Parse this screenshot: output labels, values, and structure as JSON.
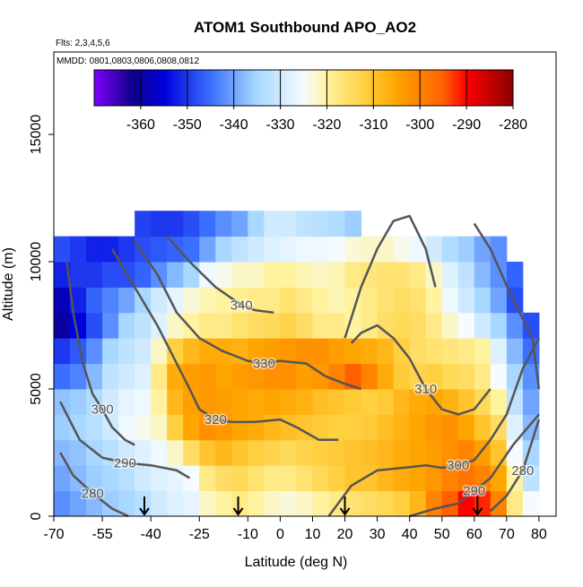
{
  "chart_data": {
    "type": "heatmap",
    "title": "ATOM1 Southbound APO_AO2",
    "subtitle": "Flts: 2,3,4,5,6",
    "annotation": "MMDD: 0801,0803,0806,0808,0812",
    "x_label": "Latitude (deg N)",
    "y_label": "Altitude (m)",
    "xlim": [
      -70,
      85.3
    ],
    "ylim": [
      0,
      18240
    ],
    "xticks": [
      -70,
      -55,
      -40,
      -25,
      -10,
      0,
      10,
      20,
      30,
      40,
      50,
      60,
      70,
      80
    ],
    "yticks": [
      0,
      5000,
      10000,
      15000
    ],
    "x": [
      -70,
      -65,
      -60,
      -55,
      -50,
      -45,
      -40,
      -35,
      -30,
      -25,
      -20,
      -15,
      -10,
      -5,
      0,
      5,
      10,
      15,
      20,
      25,
      30,
      35,
      40,
      45,
      50,
      55,
      60,
      65,
      70,
      75,
      80
    ],
    "y": [
      0,
      1000,
      2000,
      3000,
      4000,
      5000,
      6000,
      7000,
      8000,
      9000,
      10000,
      11000,
      12000
    ],
    "z": [
      [
        -342,
        -340,
        -338,
        -336,
        -335,
        -333,
        -330,
        -328,
        -327,
        -322,
        -320,
        -318,
        -320,
        -322,
        -323,
        -322,
        -320,
        -318,
        -316,
        -315,
        -314,
        -312,
        -308,
        -300,
        -295,
        -290,
        -292,
        -300,
        -318,
        -325
      ],
      [
        -340,
        -338,
        -336,
        -335,
        -333,
        -330,
        -328,
        -327,
        -325,
        -318,
        -315,
        -314,
        -316,
        -318,
        -318,
        -316,
        -314,
        -312,
        -310,
        -310,
        -308,
        -306,
        -305,
        -303,
        -300,
        -298,
        -300,
        -305,
        -320,
        -332
      ],
      [
        -338,
        -337,
        -335,
        -333,
        -330,
        -328,
        -326,
        -322,
        -315,
        -310,
        -308,
        -310,
        -312,
        -313,
        -314,
        -313,
        -312,
        -311,
        -310,
        -309,
        -308,
        -306,
        -305,
        -304,
        -302,
        -300,
        -304,
        -310,
        -325,
        -335
      ],
      [
        -336,
        -335,
        -333,
        -330,
        -326,
        -324,
        -322,
        -312,
        -305,
        -302,
        -303,
        -305,
        -306,
        -308,
        -309,
        -310,
        -311,
        -312,
        -312,
        -311,
        -309,
        -307,
        -305,
        -303,
        -302,
        -305,
        -310,
        -315,
        -328,
        -338
      ],
      [
        -337,
        -336,
        -334,
        -330,
        -327,
        -326,
        -320,
        -308,
        -304,
        -303,
        -304,
        -305,
        -306,
        -305,
        -306,
        -307,
        -309,
        -310,
        -311,
        -312,
        -311,
        -308,
        -306,
        -305,
        -307,
        -310,
        -314,
        -320,
        -332,
        -340
      ],
      [
        -345,
        -343,
        -338,
        -332,
        -330,
        -328,
        -318,
        -306,
        -304,
        -303,
        -305,
        -304,
        -303,
        -302,
        -302,
        -304,
        -303,
        -300,
        -295,
        -300,
        -306,
        -311,
        -313,
        -312,
        -314,
        -315,
        -318,
        -325,
        -335,
        -342
      ],
      [
        -350,
        -347,
        -342,
        -335,
        -332,
        -330,
        -322,
        -312,
        -308,
        -306,
        -306,
        -307,
        -305,
        -304,
        -303,
        -302,
        -302,
        -304,
        -305,
        -306,
        -308,
        -312,
        -315,
        -316,
        -317,
        -318,
        -320,
        -328,
        -338,
        -345
      ],
      [
        -360,
        -355,
        -348,
        -342,
        -335,
        -332,
        -328,
        -322,
        -320,
        -318,
        -318,
        -316,
        -315,
        -314,
        -313,
        -315,
        -318,
        -318,
        -320,
        -318,
        -315,
        -314,
        -315,
        -318,
        -322,
        -325,
        -330,
        -335,
        -342,
        -348
      ],
      [
        -358,
        -352,
        -346,
        -343,
        -340,
        -335,
        -330,
        -327,
        -323,
        -321,
        -320,
        -319,
        -318,
        -318,
        -316,
        -318,
        -320,
        -321,
        -320,
        -318,
        -316,
        -315,
        -316,
        -320,
        -326,
        -330,
        -335,
        -340,
        -348,
        null
      ],
      [
        -352,
        -350,
        -350,
        -348,
        -348,
        -346,
        -342,
        -338,
        -335,
        -326,
        -324,
        -322,
        -322,
        -320,
        -320,
        -321,
        -322,
        -321,
        -318,
        -317,
        -316,
        -316,
        -318,
        -322,
        -328,
        -332,
        -338,
        -342,
        -346,
        null
      ],
      [
        -348,
        -350,
        -352,
        -352,
        -350,
        -348,
        -347,
        -346,
        -345,
        -340,
        -335,
        -332,
        -330,
        -328,
        -327,
        -326,
        -326,
        -325,
        -323,
        -322,
        -322,
        -324,
        -326,
        -330,
        -334,
        -336,
        -340,
        -342,
        null,
        null
      ],
      [
        null,
        null,
        null,
        null,
        null,
        -349,
        -350,
        -350,
        -348,
        -345,
        -342,
        -340,
        -335,
        -330,
        -330,
        -332,
        -333,
        -334,
        -336,
        null,
        null,
        null,
        null,
        null,
        null,
        null,
        null,
        null,
        null,
        null
      ]
    ],
    "colorbar_lim": [
      -370,
      -280
    ],
    "colorbar_ticks": [
      -360,
      -350,
      -340,
      -330,
      -320,
      -310,
      -300,
      -290,
      -280
    ],
    "colorscale": [
      [
        -370,
        "#8000ff"
      ],
      [
        -362,
        "#10008a"
      ],
      [
        -355,
        "#0000dd"
      ],
      [
        -345,
        "#3a6fff"
      ],
      [
        -335,
        "#a8d8ff"
      ],
      [
        -325,
        "#f5fbff"
      ],
      [
        -320,
        "#fff3a0"
      ],
      [
        -312,
        "#ffd040"
      ],
      [
        -305,
        "#ffa500"
      ],
      [
        -295,
        "#ff6000"
      ],
      [
        -290,
        "#ff0000"
      ],
      [
        -280,
        "#8b0000"
      ]
    ],
    "contour_color": "#555555",
    "contours": [
      {
        "level": 280,
        "label": 280,
        "x": [
          -68,
          -64,
          -58,
          -52,
          -47
        ],
        "y": [
          2500,
          1600,
          900,
          300,
          0
        ]
      },
      {
        "level": 290,
        "label": 290,
        "x": [
          -68,
          -62,
          -55,
          -48,
          -40,
          -32,
          -28
        ],
        "y": [
          4500,
          3000,
          2300,
          2100,
          2000,
          1800,
          1500
        ]
      },
      {
        "level": 300,
        "label": 300,
        "x": [
          -66,
          -64,
          -61,
          -58,
          -55,
          -52,
          -48,
          -45
        ],
        "y": [
          10000,
          8000,
          6000,
          4800,
          4200,
          3500,
          3000,
          2800
        ]
      },
      {
        "level": 320,
        "label": 320,
        "x": [
          -52,
          -45,
          -38,
          -32,
          -28,
          -25,
          -20,
          -15,
          -8,
          0,
          5,
          12,
          18
        ],
        "y": [
          10500,
          9000,
          7500,
          6000,
          5000,
          4200,
          3800,
          3700,
          3700,
          3800,
          3500,
          3000,
          3000
        ]
      },
      {
        "level": 330,
        "label": 330,
        "x": [
          -45,
          -38,
          -32,
          -25,
          -18,
          -10,
          -5,
          0,
          8,
          14,
          20,
          25
        ],
        "y": [
          10800,
          9500,
          8000,
          7000,
          6500,
          6100,
          6000,
          6100,
          6000,
          5500,
          5200,
          5000
        ]
      },
      {
        "level": 340,
        "label": 340,
        "x": [
          -35,
          -28,
          -20,
          -12,
          -8,
          -2
        ],
        "y": [
          11000,
          10000,
          9000,
          8300,
          8100,
          8000
        ]
      },
      {
        "level": 300,
        "label": 300,
        "x": [
          15,
          22,
          30,
          38,
          45,
          50,
          55,
          60,
          65,
          70,
          75,
          80
        ],
        "y": [
          0,
          1200,
          1800,
          1900,
          2000,
          1900,
          2000,
          2200,
          3000,
          4000,
          5800,
          7000
        ]
      },
      {
        "level": 310,
        "label": 310,
        "x": [
          22,
          25,
          30,
          35,
          40,
          45,
          50,
          55,
          60,
          65
        ],
        "y": [
          6800,
          7200,
          7500,
          7000,
          6200,
          5000,
          4200,
          4000,
          4200,
          5000
        ]
      },
      {
        "level": 290,
        "label": 290,
        "x": [
          40,
          48,
          55,
          60,
          65,
          72,
          80
        ],
        "y": [
          0,
          300,
          500,
          1000,
          1500,
          2800,
          4000
        ]
      },
      {
        "level": 280,
        "label": 280,
        "x": [
          65,
          70,
          75,
          80
        ],
        "y": [
          200,
          800,
          1800,
          3800
        ]
      },
      {
        "level": 320,
        "x": [
          60,
          65,
          72,
          78,
          80
        ],
        "y": [
          11500,
          10500,
          8500,
          7000,
          5000
        ]
      },
      {
        "level": 330,
        "x": [
          20,
          25,
          30,
          35,
          40,
          45,
          48
        ],
        "y": [
          7000,
          9000,
          10500,
          11600,
          11800,
          10500,
          9000
        ]
      }
    ],
    "arrows": [
      -42,
      -13,
      20,
      61
    ]
  }
}
